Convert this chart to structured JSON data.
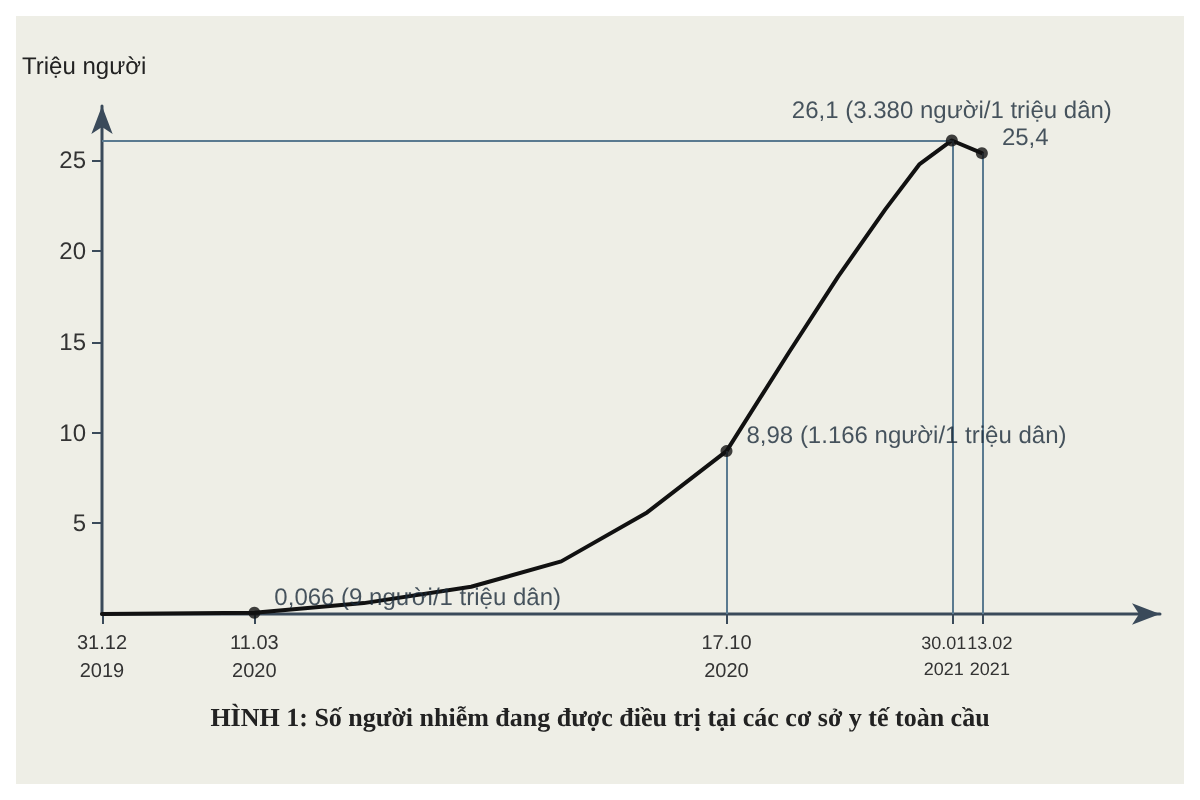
{
  "chart_data": {
    "type": "line",
    "title": "HÌNH 1: Số người nhiễm đang được điều trị tại các cơ sở y tế toàn cầu",
    "ylabel": "Triệu người",
    "x": [
      "2019-12-31",
      "2020-03-11",
      "2020-05-01",
      "2020-06-20",
      "2020-08-01",
      "2020-09-10",
      "2020-10-17",
      "2020-11-15",
      "2020-12-08",
      "2020-12-30",
      "2021-01-15",
      "2021-01-30",
      "2021-02-13"
    ],
    "series": [
      {
        "color": "#111111",
        "values": [
          0,
          0.066,
          0.6,
          1.5,
          2.9,
          5.6,
          8.98,
          14.4,
          18.6,
          22.3,
          24.8,
          26.1,
          25.4
        ]
      }
    ],
    "xlim": [
      "2019-12-31",
      "2021-05-07"
    ],
    "xticks": [
      {
        "value": "2019-12-31",
        "label": "31.12\n2019"
      },
      {
        "value": "2020-03-11",
        "label": "11.03\n2020"
      },
      {
        "value": "2020-10-17",
        "label": "17.10\n2020"
      },
      {
        "value": "2021-01-30",
        "label": "30.01\n2021"
      },
      {
        "value": "2021-02-13",
        "label": "13.02\n2021"
      }
    ],
    "ylim": [
      0,
      28
    ],
    "yticks": [
      5,
      10,
      15,
      20,
      25
    ],
    "ref_lines": [
      {
        "axis": "x",
        "value": "2020-10-17",
        "color": "#5a7a90"
      },
      {
        "axis": "x",
        "value": "2021-01-30",
        "color": "#5a7a90"
      },
      {
        "axis": "x",
        "value": "2021-02-13",
        "color": "#5a7a90"
      },
      {
        "axis": "y",
        "value": 26.1,
        "color": "#5a7a90"
      }
    ],
    "annotations": [
      {
        "text": "0,066 (9 người/1 triệu dân)",
        "x": "2020-03-11",
        "y": 0.066
      },
      {
        "text": "8,98 (1.166 người/1 triệu dân)",
        "x": "2020-10-17",
        "y": 8.98
      },
      {
        "text": "26,1 (3.380 người/1 triệu dân)",
        "x": "2021-01-30",
        "y": 26.1
      },
      {
        "text": "25,4",
        "x": "2021-02-13",
        "y": 25.4
      }
    ],
    "grid": false,
    "line_style": "solid",
    "marker": "none"
  }
}
